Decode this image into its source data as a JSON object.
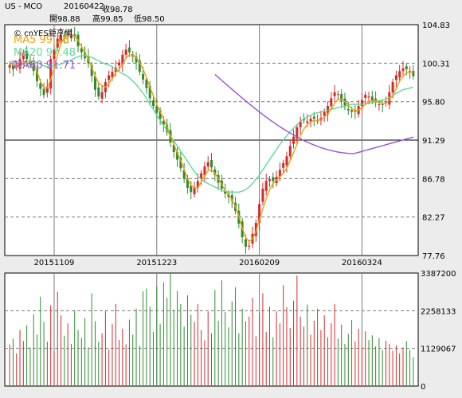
{
  "header": {
    "symbol": "US - MCO",
    "date": "20160422",
    "close": "收98.78",
    "open": "開98.88",
    "high": "高99.85",
    "low": "低98.50"
  },
  "watermark": "© cnYES鉅亨網",
  "legend": {
    "ma5": "MA5 99.18",
    "ma20": "MA20 97.48",
    "ma60": "MA60 91.71"
  },
  "colors": {
    "up": "#d42a2a",
    "down": "#2e8b2e",
    "ma5": "#f0a010",
    "ma20": "#5edb9a",
    "ma60": "#9a4fd6",
    "grid": "#7a7a7a",
    "panel": "#ffffff"
  },
  "chart_data": [
    {
      "type": "candlestick",
      "title": "",
      "y_ticks": [
        104.83,
        100.31,
        95.8,
        91.29,
        86.78,
        82.27,
        77.76
      ],
      "ylim": [
        77.76,
        104.83
      ],
      "x_tick_labels": [
        {
          "label": "20151109",
          "index": 13
        },
        {
          "label": "20151223",
          "index": 43
        },
        {
          "label": "20160209",
          "index": 73
        },
        {
          "label": "20160324",
          "index": 103
        }
      ],
      "series": [
        {
          "name": "MA5 99.18",
          "last_value": 99.18
        },
        {
          "name": "MA20 97.48",
          "last_value": 97.48
        },
        {
          "name": "MA60 91.71",
          "last_value": 91.71
        }
      ],
      "close": [
        100.1,
        99.6,
        99.9,
        100.8,
        101.5,
        100.8,
        100.2,
        99.4,
        98.2,
        97.3,
        96.6,
        97.6,
        100.8,
        101.9,
        103.2,
        103.6,
        103.3,
        103.5,
        103.7,
        103.4,
        102.3,
        101.6,
        100.9,
        100.3,
        98.8,
        97.2,
        96.4,
        96.9,
        98.1,
        98.9,
        99.3,
        99.8,
        100.4,
        101.3,
        101.9,
        101.6,
        101.1,
        100.4,
        99.3,
        98.4,
        97.4,
        96.2,
        95.3,
        94.5,
        93.8,
        93.1,
        92.2,
        91.0,
        89.9,
        89.0,
        88.0,
        86.8,
        85.7,
        85.2,
        85.7,
        86.5,
        87.4,
        88.2,
        88.7,
        88.1,
        87.2,
        86.3,
        85.6,
        85.0,
        84.6,
        84.2,
        83.0,
        81.5,
        79.9,
        78.8,
        78.9,
        80.3,
        81.6,
        83.8,
        85.6,
        86.5,
        86.7,
        86.5,
        87.0,
        87.8,
        88.6,
        89.4,
        90.6,
        91.7,
        92.8,
        93.5,
        93.6,
        93.5,
        93.8,
        93.8,
        93.6,
        93.9,
        94.6,
        95.3,
        96.2,
        96.9,
        96.7,
        95.9,
        95.2,
        94.8,
        94.6,
        94.6,
        95.3,
        96.0,
        96.6,
        96.4,
        95.9,
        95.7,
        95.5,
        95.4,
        95.7,
        96.9,
        98.1,
        98.9,
        99.4,
        99.7,
        99.6,
        99.4,
        98.8
      ],
      "ma5": [
        100.3,
        100.1,
        99.9,
        99.9,
        100.4,
        100.6,
        100.5,
        100.2,
        99.3,
        98.2,
        97.4,
        97.4,
        98.4,
        99.7,
        101.3,
        102.6,
        103.3,
        103.5,
        103.6,
        103.5,
        103.0,
        102.3,
        101.5,
        100.8,
        99.8,
        98.8,
        98.0,
        97.7,
        97.5,
        97.9,
        98.5,
        99.2,
        99.6,
        100.2,
        100.9,
        101.3,
        101.3,
        101.0,
        100.4,
        99.6,
        98.7,
        97.5,
        96.5,
        95.5,
        94.6,
        93.8,
        92.9,
        91.8,
        90.8,
        89.8,
        88.9,
        87.9,
        86.8,
        86.0,
        85.7,
        85.7,
        86.4,
        87.1,
        87.7,
        87.8,
        87.4,
        86.8,
        86.1,
        85.4,
        84.9,
        84.3,
        83.5,
        82.4,
        81.0,
        79.9,
        79.4,
        79.7,
        80.6,
        81.9,
        83.2,
        84.4,
        85.5,
        86.2,
        86.6,
        87.0,
        87.4,
        88.0,
        88.9,
        89.8,
        90.8,
        91.8,
        92.6,
        93.1,
        93.4,
        93.6,
        93.6,
        93.7,
        94.0,
        94.4,
        94.9,
        95.6,
        96.1,
        96.1,
        95.8,
        95.4,
        95.0,
        94.7,
        94.8,
        95.1,
        95.5,
        95.8,
        95.9,
        95.9,
        95.7,
        95.6,
        95.6,
        96.0,
        96.6,
        97.3,
        98.2,
        98.8,
        99.2,
        99.3,
        99.2
      ],
      "ma20": [
        100.5,
        100.5,
        100.5,
        100.5,
        100.5,
        100.6,
        100.6,
        100.5,
        100.4,
        100.2,
        100.0,
        99.9,
        99.9,
        100.0,
        100.1,
        100.2,
        100.4,
        100.5,
        100.7,
        100.9,
        101.1,
        101.2,
        101.2,
        101.1,
        101.0,
        100.8,
        100.6,
        100.4,
        100.2,
        100.1,
        99.9,
        99.6,
        99.3,
        99.1,
        98.9,
        98.6,
        98.2,
        97.8,
        97.3,
        96.8,
        96.2,
        95.5,
        94.9,
        94.2,
        93.6,
        93.0,
        92.4,
        91.8,
        91.2,
        90.6,
        90.0,
        89.4,
        88.8,
        88.2,
        87.6,
        87.1,
        86.7,
        86.4,
        86.2,
        86.0,
        85.8,
        85.6,
        85.4,
        85.3,
        85.2,
        85.2,
        85.2,
        85.2,
        85.3,
        85.5,
        85.8,
        86.2,
        86.7,
        87.2,
        87.8,
        88.4,
        89.0,
        89.6,
        90.2,
        90.8,
        91.3,
        91.8,
        92.3,
        92.7,
        93.1,
        93.5,
        93.8,
        94.0,
        94.2,
        94.4,
        94.5,
        94.6,
        94.7,
        94.8,
        94.9,
        95.0,
        95.1,
        95.2,
        95.3,
        95.4,
        95.5,
        95.5,
        95.5,
        95.5,
        95.6,
        95.6,
        95.7,
        95.8,
        95.9,
        96.0,
        96.1,
        96.3,
        96.5,
        96.8,
        97.0,
        97.2,
        97.3,
        97.4,
        97.48
      ],
      "ma60": [
        null,
        null,
        null,
        null,
        null,
        null,
        null,
        null,
        null,
        null,
        null,
        null,
        null,
        null,
        null,
        null,
        null,
        null,
        null,
        null,
        null,
        null,
        null,
        null,
        null,
        null,
        null,
        null,
        null,
        null,
        null,
        null,
        null,
        null,
        null,
        null,
        null,
        null,
        null,
        null,
        null,
        null,
        null,
        null,
        null,
        null,
        null,
        null,
        null,
        null,
        null,
        null,
        null,
        null,
        null,
        null,
        null,
        null,
        null,
        null,
        null,
        null,
        null,
        null,
        null,
        null,
        null,
        null,
        null,
        null,
        null,
        null,
        null,
        null,
        null,
        null,
        null,
        null,
        null,
        null,
        null,
        null,
        null,
        null,
        null,
        null,
        null,
        null,
        null,
        null,
        null,
        null,
        null,
        null,
        null,
        null,
        null,
        null,
        null,
        null,
        null,
        null,
        null,
        null,
        null,
        null,
        null,
        null,
        null,
        null,
        null,
        null,
        null,
        null,
        null,
        null,
        null,
        null,
        null
      ],
      "volume": {
        "ylim": [
          0,
          3387200
        ],
        "y_ticks": [
          3387200,
          2258133,
          1129067,
          0
        ],
        "values": [
          1250000,
          1420000,
          980000,
          1680000,
          1350000,
          1820000,
          1160000,
          2150000,
          1540000,
          2680000,
          1920000,
          1330000,
          2420000,
          1060000,
          2820000,
          2120000,
          1510000,
          1880000,
          1260000,
          2260000,
          1680000,
          1440000,
          2040000,
          1160000,
          2780000,
          1940000,
          1320000,
          1580000,
          2240000,
          1090000,
          1860000,
          2460000,
          1380000,
          1720000,
          1250000,
          1990000,
          1540000,
          2320000,
          1210000,
          2840000,
          2920000,
          2380000,
          1620000,
          2980000,
          1860000,
          3110000,
          2640000,
          3387200,
          2280000,
          2850000,
          2460000,
          1780000,
          2720000,
          2140000,
          1920000,
          2460000,
          1680000,
          1370000,
          2230000,
          1580000,
          2880000,
          1960000,
          3170000,
          2220000,
          1760000,
          2540000,
          2960000,
          1580000,
          2320000,
          1940000,
          2080000,
          2640000,
          1490000,
          2200000,
          2780000,
          1620000,
          2380000,
          1460000,
          2240000,
          1880000,
          3020000,
          2360000,
          1740000,
          2560000,
          3310000,
          2080000,
          1780000,
          2440000,
          1540000,
          1960000,
          2320000,
          1680000,
          2120000,
          1460000,
          1880000,
          2460000,
          1420000,
          1840000,
          1260000,
          1560000,
          1980000,
          1340000,
          1720000,
          1160000,
          1640000,
          1380000,
          1520000,
          1190000,
          1440000,
          1080000,
          1360000,
          1260000,
          1060000,
          1220000,
          980000,
          1160000,
          1340000,
          1080000,
          860000
        ]
      }
    }
  ]
}
